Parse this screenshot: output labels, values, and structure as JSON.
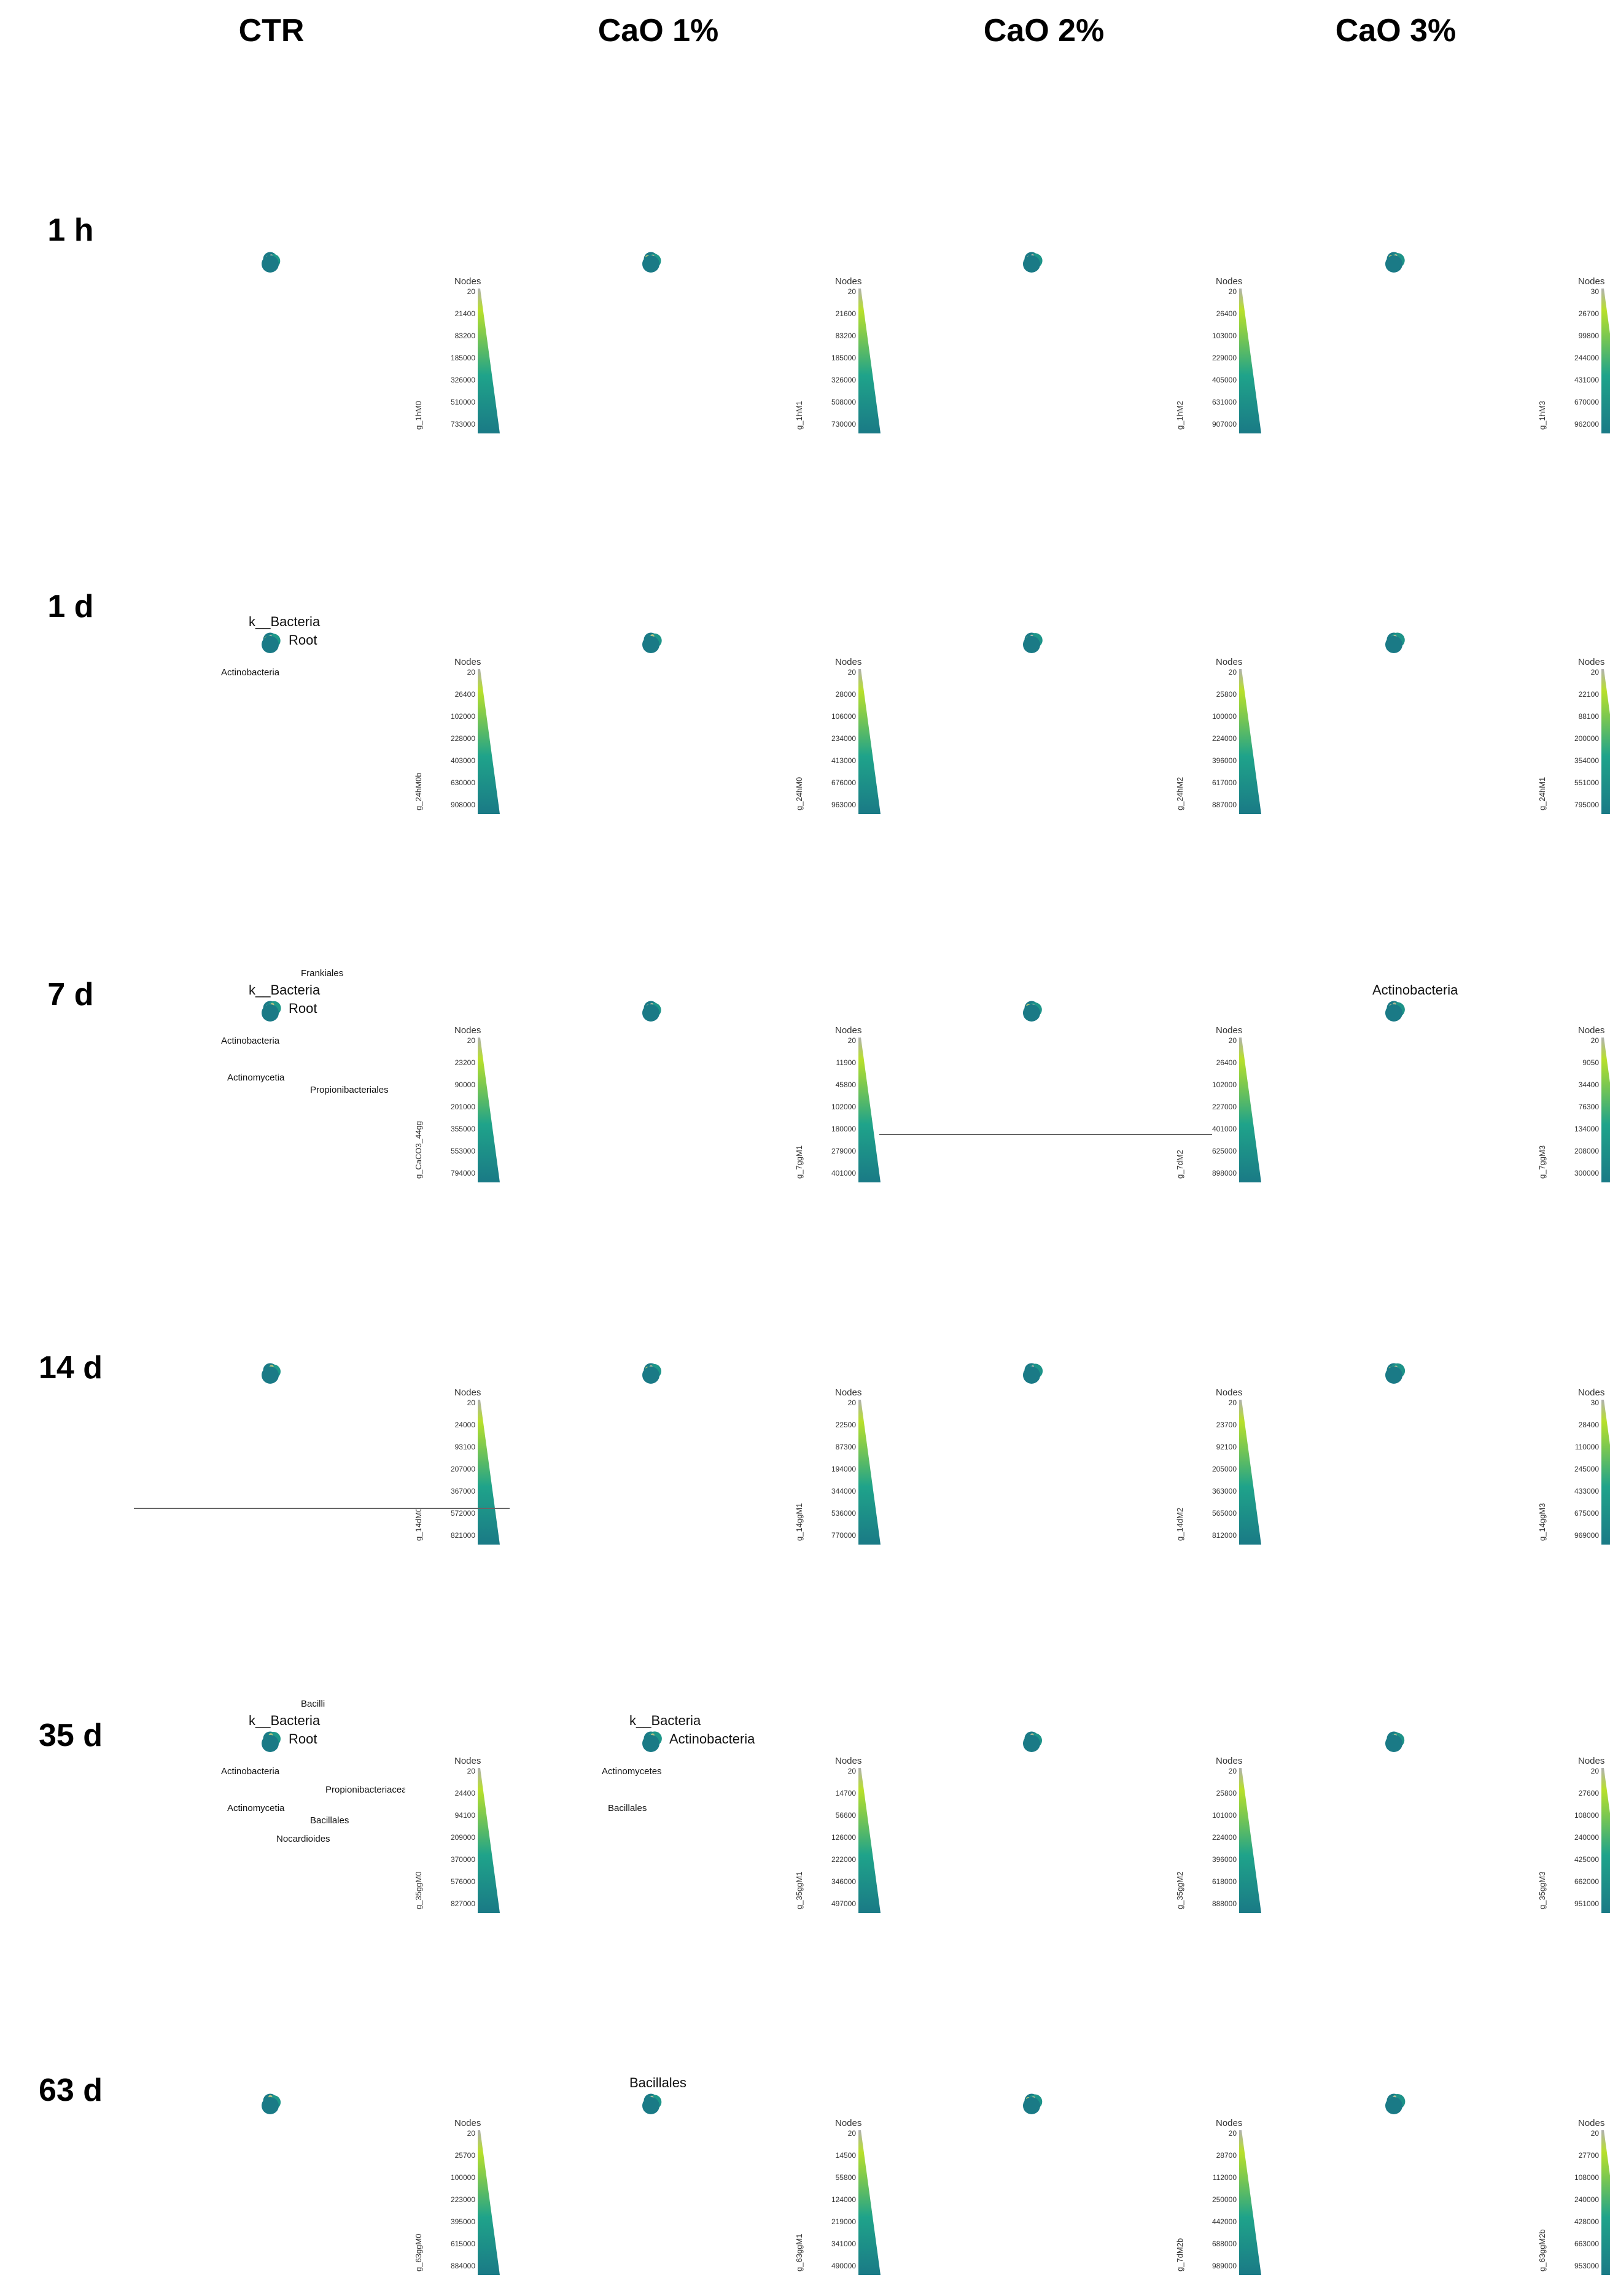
{
  "columns": [
    "CTR",
    "CaO 1%",
    "CaO 2%",
    "CaO 3%"
  ],
  "rows": [
    "1 h",
    "1 d",
    "7 d",
    "14 d",
    "35 d",
    "63 d"
  ],
  "legend_title": "Nodes",
  "colors": {
    "high": "#1a7a86",
    "mid": "#1fa38a",
    "low": "#b8e02a",
    "leaf": "#b0b0b0"
  },
  "icons": [
    "tree-diagram",
    "color-scale-triangle"
  ],
  "panels": [
    [
      {
        "id": "g_1hM0",
        "ticks": [
          "20",
          "21400",
          "83200",
          "185000",
          "326000",
          "510000",
          "733000"
        ],
        "labels": []
      },
      {
        "id": "g_1hM1",
        "ticks": [
          "20",
          "21600",
          "83200",
          "185000",
          "326000",
          "508000",
          "730000"
        ],
        "labels": []
      },
      {
        "id": "g_1hM2",
        "ticks": [
          "20",
          "26400",
          "103000",
          "229000",
          "405000",
          "631000",
          "907000"
        ],
        "labels": []
      },
      {
        "id": "g_1hM3",
        "ticks": [
          "30",
          "26700",
          "99800",
          "244000",
          "431000",
          "670000",
          "962000"
        ],
        "labels": []
      }
    ],
    [
      {
        "id": "g_24hM0b",
        "ticks": [
          "20",
          "26400",
          "102000",
          "228000",
          "403000",
          "630000",
          "908000"
        ],
        "labels": [
          "k__Bacteria",
          "Root",
          "Actinobacteria"
        ]
      },
      {
        "id": "g_24hM0",
        "ticks": [
          "20",
          "28000",
          "106000",
          "234000",
          "413000",
          "676000",
          "963000"
        ],
        "labels": []
      },
      {
        "id": "g_24hM2",
        "ticks": [
          "20",
          "25800",
          "100000",
          "224000",
          "396000",
          "617000",
          "887000"
        ],
        "labels": []
      },
      {
        "id": "g_24hM1",
        "ticks": [
          "20",
          "22100",
          "88100",
          "200000",
          "354000",
          "551000",
          "795000"
        ],
        "labels": []
      }
    ],
    [
      {
        "id": "g_CaCO3_44gg",
        "ticks": [
          "20",
          "23200",
          "90000",
          "201000",
          "355000",
          "553000",
          "794000"
        ],
        "labels": [
          "k__Bacteria",
          "Root",
          "Actinobacteria",
          "Actinomycetia",
          "Propionibacteriales",
          "Frankiales"
        ]
      },
      {
        "id": "g_7ggM1",
        "ticks": [
          "20",
          "11900",
          "45800",
          "102000",
          "180000",
          "279000",
          "401000"
        ],
        "labels": []
      },
      {
        "id": "g_7dM2",
        "ticks": [
          "20",
          "26400",
          "102000",
          "227000",
          "401000",
          "625000",
          "898000"
        ],
        "labels": []
      },
      {
        "id": "g_7ggM3",
        "ticks": [
          "20",
          "9050",
          "34400",
          "76300",
          "134000",
          "208000",
          "300000"
        ],
        "labels": [
          "Actinobacteria"
        ]
      }
    ],
    [
      {
        "id": "g_14dM0",
        "ticks": [
          "20",
          "24000",
          "93100",
          "207000",
          "367000",
          "572000",
          "821000"
        ],
        "labels": []
      },
      {
        "id": "g_14ggM1",
        "ticks": [
          "20",
          "22500",
          "87300",
          "194000",
          "344000",
          "536000",
          "770000"
        ],
        "labels": []
      },
      {
        "id": "g_14dM2",
        "ticks": [
          "20",
          "23700",
          "92100",
          "205000",
          "363000",
          "565000",
          "812000"
        ],
        "labels": []
      },
      {
        "id": "g_14ggM3",
        "ticks": [
          "30",
          "28400",
          "110000",
          "245000",
          "433000",
          "675000",
          "969000"
        ],
        "labels": []
      }
    ],
    [
      {
        "id": "g_35ggM0",
        "ticks": [
          "20",
          "24400",
          "94100",
          "209000",
          "370000",
          "576000",
          "827000"
        ],
        "labels": [
          "k__Bacteria",
          "Root",
          "Actinobacteria",
          "Actinomycetia",
          "Bacillales",
          "Bacilli",
          "Propionibacteriaceae",
          "Nocardioides"
        ]
      },
      {
        "id": "g_35ggM1",
        "ticks": [
          "20",
          "14700",
          "56600",
          "126000",
          "222000",
          "346000",
          "497000"
        ],
        "labels": [
          "k__Bacteria",
          "Actinobacteria",
          "Actinomycetes",
          "Bacillales"
        ]
      },
      {
        "id": "g_35ggM2",
        "ticks": [
          "20",
          "25800",
          "101000",
          "224000",
          "396000",
          "618000",
          "888000"
        ],
        "labels": []
      },
      {
        "id": "g_35ggM3",
        "ticks": [
          "20",
          "27600",
          "108000",
          "240000",
          "425000",
          "662000",
          "951000"
        ],
        "labels": []
      }
    ],
    [
      {
        "id": "g_63ggM0",
        "ticks": [
          "20",
          "25700",
          "100000",
          "223000",
          "395000",
          "615000",
          "884000"
        ],
        "labels": []
      },
      {
        "id": "g_63ggM1",
        "ticks": [
          "20",
          "14500",
          "55800",
          "124000",
          "219000",
          "341000",
          "490000"
        ],
        "labels": [
          "Bacillales"
        ]
      },
      {
        "id": "g_7dM2b",
        "ticks": [
          "20",
          "28700",
          "112000",
          "250000",
          "442000",
          "688000",
          "989000"
        ],
        "labels": []
      },
      {
        "id": "g_63ggM2b",
        "ticks": [
          "20",
          "27700",
          "108000",
          "240000",
          "428000",
          "663000",
          "953000"
        ],
        "labels": []
      }
    ]
  ]
}
